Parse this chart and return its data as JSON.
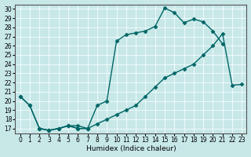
{
  "xlabel": "Humidex (Indice chaleur)",
  "ylabel": "",
  "bg_color": "#c8e8e8",
  "line_color": "#006666",
  "xlim": [
    -0.5,
    23.5
  ],
  "ylim": [
    16.5,
    30.5
  ],
  "xticks": [
    0,
    1,
    2,
    3,
    4,
    5,
    6,
    7,
    8,
    9,
    10,
    11,
    12,
    13,
    14,
    15,
    16,
    17,
    18,
    19,
    20,
    21,
    22,
    23
  ],
  "yticks": [
    17,
    18,
    19,
    20,
    21,
    22,
    23,
    24,
    25,
    26,
    27,
    28,
    29,
    30
  ],
  "line1_x": [
    0,
    1,
    2,
    3,
    4,
    5,
    6,
    7,
    8,
    9,
    10,
    11,
    12,
    13,
    14,
    15,
    16,
    17,
    18,
    19,
    20,
    21
  ],
  "line1_y": [
    20.5,
    19.5,
    17.0,
    16.8,
    17.0,
    17.3,
    17.0,
    17.0,
    19.5,
    20.0,
    26.5,
    27.2,
    27.4,
    27.6,
    28.1,
    30.1,
    29.6,
    28.5,
    28.9,
    28.6,
    27.6,
    26.2
  ],
  "line2_x": [
    0,
    1,
    2,
    3,
    4,
    5,
    6,
    7
  ],
  "line2_y": [
    20.5,
    19.5,
    17.0,
    16.8,
    17.0,
    17.3,
    17.0,
    17.0
  ],
  "line3_x": [
    2,
    3,
    4,
    5,
    6,
    7,
    8,
    9,
    10,
    11,
    12,
    13,
    14,
    15,
    16,
    17,
    18,
    19,
    20,
    21,
    22,
    23
  ],
  "line3_y": [
    17.0,
    16.8,
    17.0,
    17.3,
    17.3,
    17.0,
    17.5,
    18.0,
    18.5,
    19.0,
    19.5,
    20.5,
    21.5,
    22.5,
    23.0,
    23.5,
    24.0,
    25.0,
    26.0,
    27.3,
    21.7,
    21.8
  ]
}
